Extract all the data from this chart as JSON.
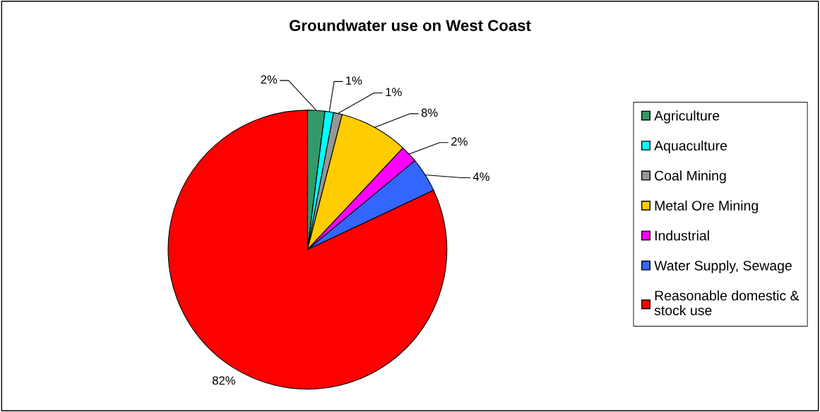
{
  "chart_data": {
    "type": "pie",
    "title": "Groundwater use on West Coast",
    "categories": [
      "Agriculture",
      "Aquaculture",
      "Coal Mining",
      "Metal Ore Mining",
      "Industrial",
      "Water Supply, Sewage",
      "Reasonable domestic &\nstock use"
    ],
    "values": [
      2,
      1,
      1,
      8,
      2,
      4,
      82
    ],
    "colors": [
      "#339966",
      "#00ffff",
      "#969696",
      "#ffcc00",
      "#ff00ff",
      "#3366ff",
      "#ff0000"
    ],
    "value_labels": [
      "2%",
      "1%",
      "1%",
      "8%",
      "2%",
      "4%",
      "82%"
    ],
    "legend": "right"
  }
}
